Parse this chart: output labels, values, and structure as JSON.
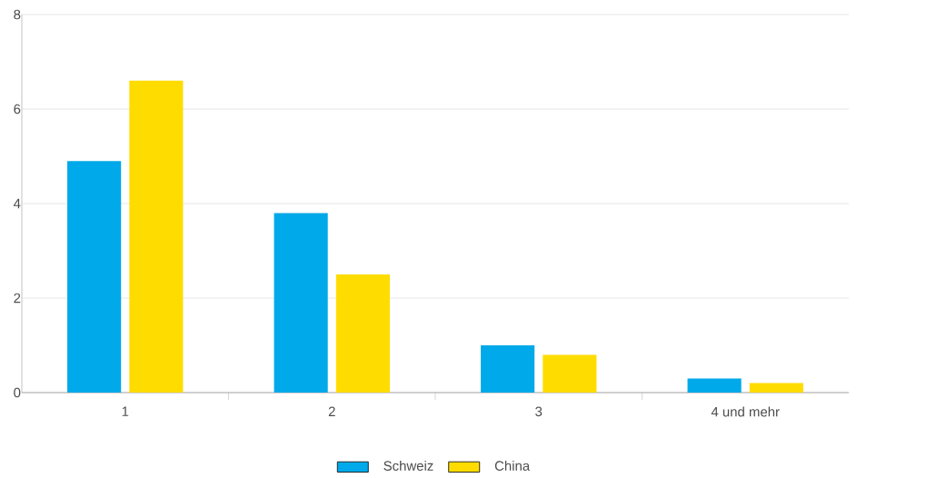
{
  "chart_data": {
    "type": "bar",
    "categories": [
      "1",
      "2",
      "3",
      "4 und mehr"
    ],
    "series": [
      {
        "name": "Schweiz",
        "color": "#00a9e9",
        "values": [
          4.9,
          3.8,
          1.0,
          0.3
        ]
      },
      {
        "name": "China",
        "color": "#ffdc00",
        "values": [
          6.6,
          2.5,
          0.8,
          0.2
        ]
      }
    ],
    "ylim": [
      0,
      8
    ],
    "yticks": [
      0,
      2,
      4,
      6,
      8
    ],
    "grid": "y",
    "legend": "bottom"
  }
}
